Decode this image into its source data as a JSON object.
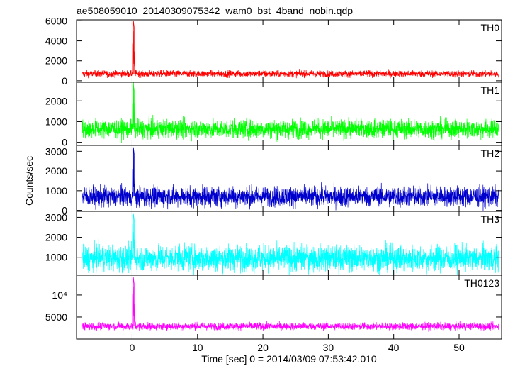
{
  "chart_data": {
    "type": "line",
    "title": "ae508059010_20140309075342_wam0_bst_4band_nobin.qdp",
    "xlabel": "Time [sec] 0 = 2014/03/09 07:53:42.010",
    "ylabel": "Counts/sec",
    "xlim": [
      -8.5,
      56.5
    ],
    "x_ticks": [
      0,
      10,
      20,
      30,
      40,
      50
    ],
    "x_tick_labels": [
      "0",
      "10",
      "20",
      "30",
      "40",
      "50"
    ],
    "panels": [
      {
        "label": "TH0",
        "color": "#ff0000",
        "ylim": [
          -150,
          6100
        ],
        "y_ticks": [
          0,
          2000,
          4000,
          6000
        ],
        "y_tick_labels": [
          "0",
          "2000",
          "4000",
          "6000"
        ],
        "baseline": 700,
        "noise": 170,
        "peak_time": 0.2,
        "peak_value": 6000
      },
      {
        "label": "TH1",
        "color": "#00ff00",
        "ylim": [
          -150,
          2900
        ],
        "y_ticks": [
          0,
          1000,
          2000
        ],
        "y_tick_labels": [
          "0",
          "1000",
          "2000"
        ],
        "baseline": 650,
        "noise": 230,
        "peak_time": 0.2,
        "peak_value": 2800
      },
      {
        "label": "TH2",
        "color": "#0000cc",
        "ylim": [
          -50,
          3300
        ],
        "y_ticks": [
          0,
          1000,
          2000,
          3000
        ],
        "y_tick_labels": [
          "0",
          "1000",
          "2000",
          "3000"
        ],
        "baseline": 700,
        "noise": 260,
        "peak_time": 0.2,
        "peak_value": 3200
      },
      {
        "label": "TH3",
        "color": "#00ffff",
        "ylim": [
          100,
          3300
        ],
        "y_ticks": [
          1000,
          2000,
          3000
        ],
        "y_tick_labels": [
          "1000",
          "2000",
          "3000"
        ],
        "baseline": 950,
        "noise": 330,
        "peak_time": 0.2,
        "peak_value": 3200
      },
      {
        "label": "TH0123",
        "color": "#ff00ff",
        "ylim": [
          0,
          14500
        ],
        "y_ticks": [
          5000,
          10000
        ],
        "y_tick_labels": [
          "5000",
          "10⁴"
        ],
        "baseline": 2900,
        "noise": 420,
        "peak_time": 0.2,
        "peak_value": 14000
      }
    ]
  }
}
